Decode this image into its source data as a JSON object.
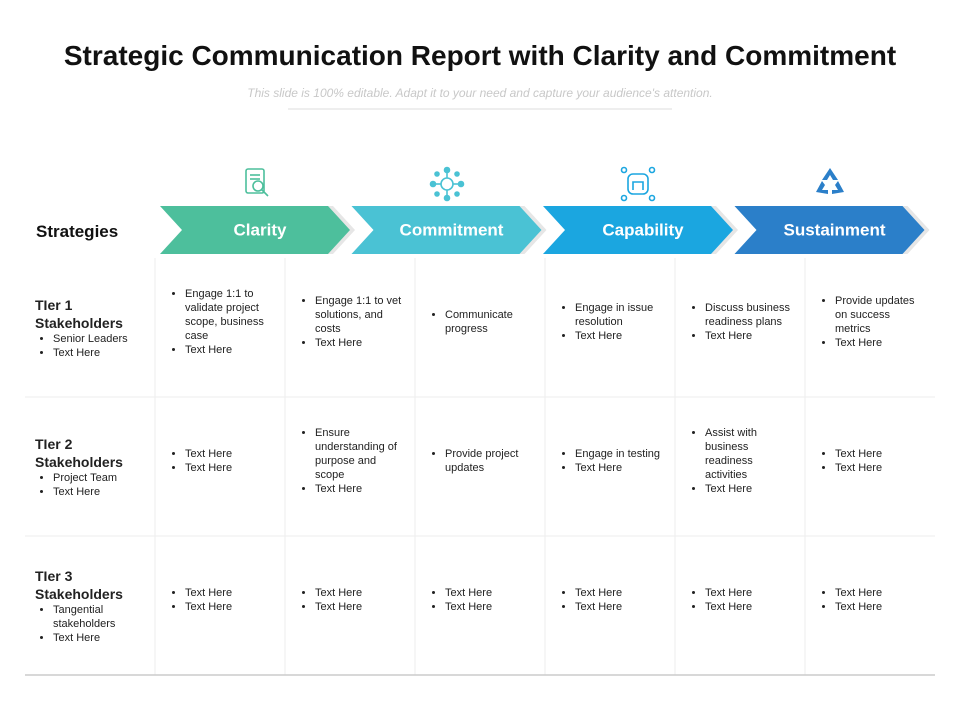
{
  "title": "Strategic Communication Report with Clarity and Commitment",
  "subtitle": "This slide is 100% editable. Adapt it to your need and capture your audience's attention.",
  "header": {
    "label": "Strategies",
    "phases": [
      {
        "name": "Clarity",
        "color": "#4dbf9c"
      },
      {
        "name": "Commitment",
        "color": "#4ac2d4"
      },
      {
        "name": "Capability",
        "color": "#1ba6e0"
      },
      {
        "name": "Sustainment",
        "color": "#2b7fc9"
      }
    ]
  },
  "rows": [
    {
      "name": "TIer 1 Stakeholders",
      "bullets": [
        "Senior Leaders",
        "Text Here"
      ],
      "cells": [
        [
          "Engage 1:1 to validate project scope, business case",
          "Text Here"
        ],
        [
          "Engage 1:1 to vet solutions, and costs",
          "Text Here"
        ],
        [
          "Communicate progress"
        ],
        [
          "Engage in issue resolution",
          "Text Here"
        ],
        [
          "Discuss business readiness plans",
          "Text Here"
        ],
        [
          "Provide updates on success metrics",
          "Text Here"
        ]
      ]
    },
    {
      "name": "TIer 2 Stakeholders",
      "bullets": [
        "Project Team",
        "Text Here"
      ],
      "cells": [
        [
          "Text Here",
          "Text Here"
        ],
        [
          "Ensure understanding of purpose and scope",
          "Text Here"
        ],
        [
          "Provide project updates"
        ],
        [
          "Engage in testing",
          "Text Here"
        ],
        [
          "Assist with business readiness activities",
          "Text Here"
        ],
        [
          "Text Here",
          "Text Here"
        ]
      ]
    },
    {
      "name": "TIer 3 Stakeholders",
      "bullets": [
        "Tangential stakeholders",
        "Text Here"
      ],
      "cells": [
        [
          "Text Here",
          "Text Here"
        ],
        [
          "Text Here",
          "Text Here"
        ],
        [
          "Text Here",
          "Text Here"
        ],
        [
          "Text Here",
          "Text Here"
        ],
        [
          "Text Here",
          "Text Here"
        ],
        [
          "Text Here",
          "Text Here"
        ]
      ]
    }
  ]
}
